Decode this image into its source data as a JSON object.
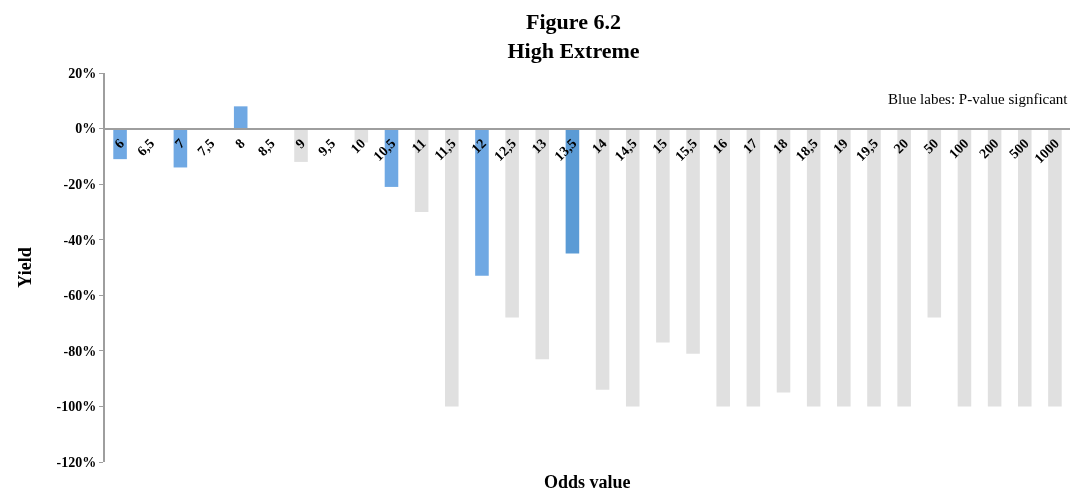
{
  "chart_data": {
    "type": "bar",
    "title": "Figure 6.2\nHigh Extreme",
    "xlabel": "Odds value",
    "ylabel": "Yield",
    "annotations": [
      "Blue labes: P-value signficant"
    ],
    "categories": [
      "6",
      "6,5",
      "7",
      "7,5",
      "8",
      "8,5",
      "9",
      "9,5",
      "10",
      "10,5",
      "11",
      "11,5",
      "12",
      "12,5",
      "13",
      "13,5",
      "14",
      "14,5",
      "15",
      "15,5",
      "16",
      "17",
      "18",
      "18,5",
      "19",
      "19,5",
      "20",
      "50",
      "100",
      "200",
      "500",
      "1000"
    ],
    "values": [
      -11,
      0,
      -14,
      0,
      8,
      0,
      -12,
      0,
      -5,
      -21,
      -30,
      -100,
      -53,
      -68,
      -83,
      -45,
      -94,
      -100,
      -77,
      -81,
      -100,
      -100,
      -95,
      -100,
      -100,
      -100,
      -100,
      -68,
      -100,
      -100,
      -100,
      -100
    ],
    "colors": [
      "#6fa8e3",
      "#e0e0e0",
      "#6fa8e3",
      "#e0e0e0",
      "#6fa8e3",
      "#e0e0e0",
      "#e0e0e0",
      "#e0e0e0",
      "#e0e0e0",
      "#6fa8e3",
      "#e0e0e0",
      "#e0e0e0",
      "#6fa8e3",
      "#e0e0e0",
      "#e0e0e0",
      "#5b9bd5",
      "#e0e0e0",
      "#e0e0e0",
      "#e0e0e0",
      "#e0e0e0",
      "#e0e0e0",
      "#e0e0e0",
      "#e0e0e0",
      "#e0e0e0",
      "#e0e0e0",
      "#e0e0e0",
      "#e0e0e0",
      "#e0e0e0",
      "#e0e0e0",
      "#e0e0e0",
      "#e0e0e0",
      "#e0e0e0"
    ],
    "ylim": [
      -120,
      20
    ],
    "yticks": [
      {
        "value": 20,
        "label": "20%"
      },
      {
        "value": 0,
        "label": "0%"
      },
      {
        "value": -20,
        "label": "-20%"
      },
      {
        "value": -40,
        "label": "-40%"
      },
      {
        "value": -60,
        "label": "-60%"
      },
      {
        "value": -80,
        "label": "-80%"
      },
      {
        "value": -100,
        "label": "-100%"
      },
      {
        "value": -120,
        "label": "-120%"
      }
    ],
    "grid": false
  }
}
